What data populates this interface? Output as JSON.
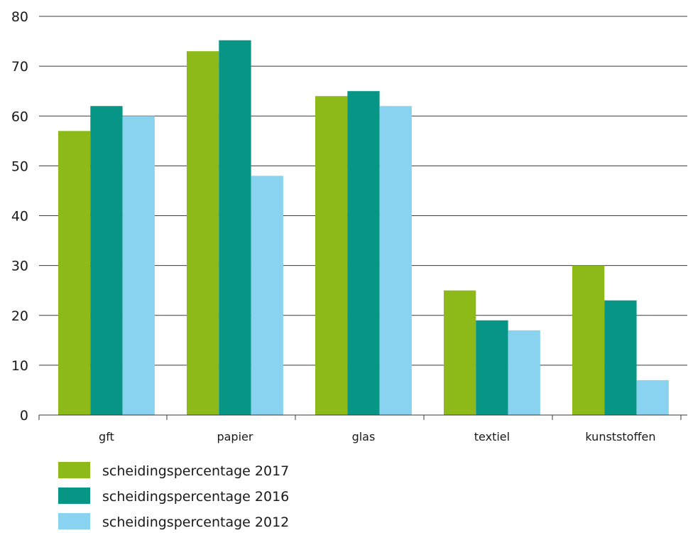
{
  "chart_data": {
    "type": "bar",
    "title": "",
    "xlabel": "",
    "ylabel": "",
    "categories": [
      "gft",
      "papier",
      "glas",
      "textiel",
      "kunststoffen"
    ],
    "series": [
      {
        "name": "scheidingspercentage 2017",
        "color": "#8dba19",
        "values": [
          57,
          73,
          64,
          25,
          30
        ]
      },
      {
        "name": "scheidingspercentage 2016",
        "color": "#079685",
        "values": [
          62,
          75.2,
          65,
          19,
          23
        ]
      },
      {
        "name": "scheidingspercentage 2012",
        "color": "#8ad3f0",
        "values": [
          60,
          48,
          62,
          17,
          7
        ]
      }
    ],
    "ylim": [
      0,
      80
    ],
    "yticks": [
      "0",
      "10",
      "20",
      "30",
      "40",
      "50",
      "60",
      "70",
      "80"
    ],
    "grid": true,
    "legend_position": "bottom-left"
  }
}
